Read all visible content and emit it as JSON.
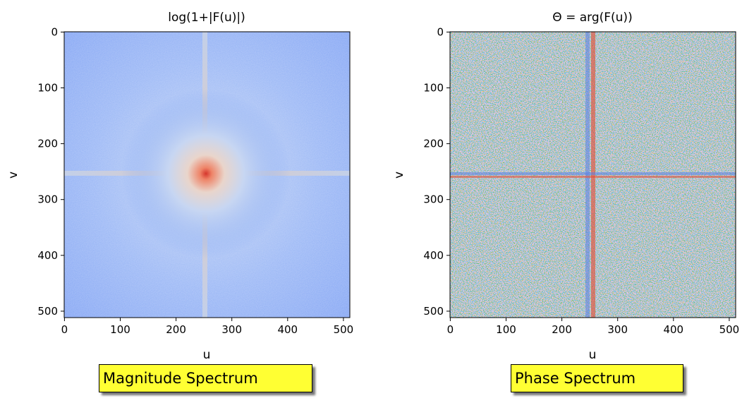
{
  "chart_data": [
    {
      "type": "heatmap",
      "title": "log(1+|F(u)|)",
      "xlabel": "u",
      "ylabel": "v",
      "xlim": [
        0,
        511
      ],
      "ylim": [
        511,
        0
      ],
      "xticks": [
        0,
        100,
        200,
        300,
        400,
        500
      ],
      "yticks": [
        0,
        100,
        200,
        300,
        400,
        500
      ],
      "colormap": "coolwarm",
      "description_values": {
        "center_peak": [
          256,
          256
        ],
        "cross_lines": {
          "u": 256,
          "v": 256
        }
      }
    },
    {
      "type": "heatmap",
      "title": "Θ = arg(F(u))",
      "xlabel": "u",
      "ylabel": "v",
      "xlim": [
        0,
        511
      ],
      "ylim": [
        511,
        0
      ],
      "xticks": [
        0,
        100,
        200,
        300,
        400,
        500
      ],
      "yticks": [
        0,
        100,
        200,
        300,
        400,
        500
      ],
      "colormap": "coolwarm",
      "description_values": {
        "cross_lines": {
          "u": 256,
          "v": 256
        }
      }
    }
  ],
  "captions": {
    "magnitude": "Magnitude Spectrum",
    "phase": "Phase Spectrum"
  },
  "colors": {
    "cool": "#6f92f3",
    "mid": "#dcdddd",
    "warm": "#e8684f",
    "caption_bg": "#ffff33"
  }
}
